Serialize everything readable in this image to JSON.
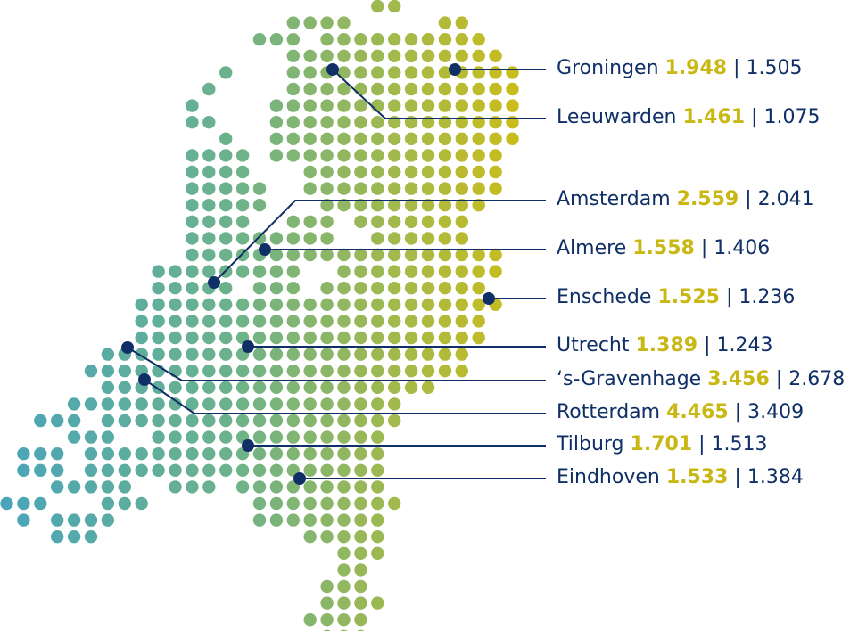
{
  "colors": {
    "line": "#0f2f66",
    "marker": "#0f2f66",
    "highlight": "#c9b814",
    "text": "#0f2f66",
    "dot_west": "#4aa5b8",
    "dot_mid": "#6db38a",
    "dot_east": "#cbbd1c"
  },
  "cities": [
    {
      "name": "Groningen",
      "value_a": "1.948",
      "value_b": "1.505"
    },
    {
      "name": "Leeuwarden",
      "value_a": "1.461",
      "value_b": "1.075"
    },
    {
      "name": "Amsterdam",
      "value_a": "2.559",
      "value_b": "2.041"
    },
    {
      "name": "Almere",
      "value_a": "1.558",
      "value_b": "1.406"
    },
    {
      "name": "Enschede",
      "value_a": "1.525",
      "value_b": "1.236"
    },
    {
      "name": "Utrecht",
      "value_a": "1.389",
      "value_b": "1.243"
    },
    {
      "name": "‘s-Gravenhage",
      "value_a": "3.456",
      "value_b": "2.678"
    },
    {
      "name": "Rotterdam",
      "value_a": "4.465",
      "value_b": "3.409"
    },
    {
      "name": "Tilburg",
      "value_a": "1.701",
      "value_b": "1.513"
    },
    {
      "name": "Eindhoven",
      "value_a": "1.533",
      "value_b": "1.384"
    }
  ]
}
